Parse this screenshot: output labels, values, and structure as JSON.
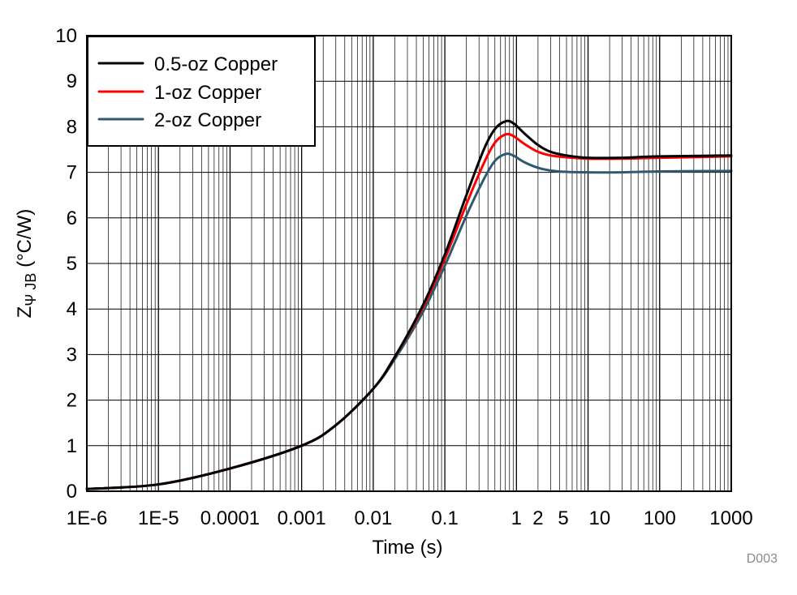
{
  "chart_data": {
    "type": "line",
    "xscale": "log",
    "xlim": [
      1e-06,
      1000
    ],
    "ylim": [
      0,
      10
    ],
    "grid": true,
    "xlabel": "Time (s)",
    "ylabel": {
      "main": "Z",
      "sub": "Ψ JB",
      "unit": " (°C/W)"
    },
    "xticks": [
      {
        "value": 1e-06,
        "label": "1E-6"
      },
      {
        "value": 1e-05,
        "label": "1E-5"
      },
      {
        "value": 0.0001,
        "label": "0.0001"
      },
      {
        "value": 0.001,
        "label": "0.001"
      },
      {
        "value": 0.01,
        "label": "0.01"
      },
      {
        "value": 0.1,
        "label": "0.1"
      },
      {
        "value": 1,
        "label": "1"
      },
      {
        "value": 2,
        "label": "2"
      },
      {
        "value": 5,
        "label": "5"
      },
      {
        "value": 10,
        "label": "10"
      },
      {
        "value": 100,
        "label": "100"
      },
      {
        "value": 1000,
        "label": "1000"
      }
    ],
    "yticks": [
      0,
      1,
      2,
      3,
      4,
      5,
      6,
      7,
      8,
      9,
      10
    ],
    "legend_position": "top-left",
    "series": [
      {
        "name": "0.5-oz Copper",
        "color": "#000000",
        "points": [
          [
            1e-06,
            0.05
          ],
          [
            1e-05,
            0.15
          ],
          [
            0.0001,
            0.5
          ],
          [
            0.001,
            1.0
          ],
          [
            0.003,
            1.45
          ],
          [
            0.01,
            2.25
          ],
          [
            0.02,
            2.95
          ],
          [
            0.05,
            4.1
          ],
          [
            0.1,
            5.2
          ],
          [
            0.2,
            6.5
          ],
          [
            0.35,
            7.5
          ],
          [
            0.5,
            7.95
          ],
          [
            0.7,
            8.12
          ],
          [
            0.9,
            8.08
          ],
          [
            1.3,
            7.85
          ],
          [
            2,
            7.6
          ],
          [
            3,
            7.45
          ],
          [
            5,
            7.37
          ],
          [
            10,
            7.32
          ],
          [
            30,
            7.32
          ],
          [
            100,
            7.35
          ],
          [
            1000,
            7.37
          ]
        ]
      },
      {
        "name": "1-oz Copper",
        "color": "#ff0000",
        "points": [
          [
            1e-06,
            0.05
          ],
          [
            1e-05,
            0.15
          ],
          [
            0.0001,
            0.5
          ],
          [
            0.001,
            1.0
          ],
          [
            0.003,
            1.45
          ],
          [
            0.01,
            2.25
          ],
          [
            0.02,
            2.95
          ],
          [
            0.05,
            4.05
          ],
          [
            0.1,
            5.1
          ],
          [
            0.2,
            6.3
          ],
          [
            0.35,
            7.2
          ],
          [
            0.5,
            7.65
          ],
          [
            0.7,
            7.83
          ],
          [
            0.9,
            7.8
          ],
          [
            1.3,
            7.62
          ],
          [
            2,
            7.45
          ],
          [
            3,
            7.37
          ],
          [
            5,
            7.33
          ],
          [
            10,
            7.3
          ],
          [
            30,
            7.3
          ],
          [
            100,
            7.32
          ],
          [
            1000,
            7.35
          ]
        ]
      },
      {
        "name": "2-oz Copper",
        "color": "#2f5a6e",
        "points": [
          [
            1e-06,
            0.05
          ],
          [
            1e-05,
            0.15
          ],
          [
            0.0001,
            0.5
          ],
          [
            0.001,
            1.0
          ],
          [
            0.003,
            1.45
          ],
          [
            0.01,
            2.25
          ],
          [
            0.02,
            2.9
          ],
          [
            0.05,
            3.95
          ],
          [
            0.1,
            4.95
          ],
          [
            0.2,
            6.05
          ],
          [
            0.35,
            6.85
          ],
          [
            0.5,
            7.25
          ],
          [
            0.7,
            7.4
          ],
          [
            0.9,
            7.37
          ],
          [
            1.3,
            7.22
          ],
          [
            2,
            7.1
          ],
          [
            3,
            7.04
          ],
          [
            5,
            7.01
          ],
          [
            10,
            7.0
          ],
          [
            30,
            7.0
          ],
          [
            100,
            7.02
          ],
          [
            1000,
            7.03
          ]
        ]
      }
    ],
    "watermark": "D003"
  }
}
